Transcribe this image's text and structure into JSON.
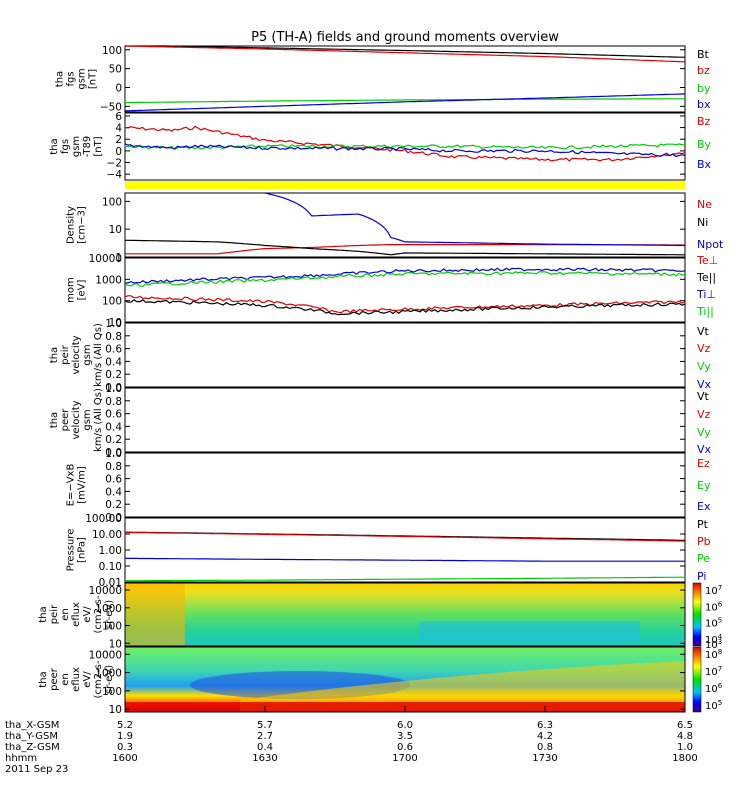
{
  "title": "P5 (TH-A) fields and ground moments overview",
  "colors": {
    "black": "#000000",
    "red": "#dd0000",
    "green": "#00cc00",
    "blue": "#0000dd",
    "yellow": "#ffff00"
  },
  "chart_data": [
    {
      "type": "line",
      "panel": "fgs",
      "ylabel": [
        "tha",
        "fgs",
        "gsm",
        "[nT]"
      ],
      "yticks": [
        "100",
        "50",
        "0",
        "−50"
      ],
      "ylim": [
        -65,
        110
      ],
      "x": [
        1600,
        1630,
        1700,
        1730,
        1800
      ],
      "series": [
        {
          "name": "Bt",
          "color": "#000000",
          "values": [
            112,
            105,
            98,
            90,
            80
          ]
        },
        {
          "name": "bz",
          "color": "#dd0000",
          "values": [
            110,
            102,
            92,
            82,
            68
          ]
        },
        {
          "name": "by",
          "color": "#00cc00",
          "values": [
            -40,
            -36,
            -33,
            -31,
            -30
          ]
        },
        {
          "name": "bx",
          "color": "#0000dd",
          "values": [
            -62,
            -50,
            -38,
            -28,
            -17
          ]
        }
      ]
    },
    {
      "type": "line",
      "panel": "fgs-t89",
      "ylabel": [
        "tha",
        "fgs",
        "gsm",
        "-T89",
        "[nT]"
      ],
      "yticks": [
        "6",
        "4",
        "2",
        "0",
        "−2",
        "−4"
      ],
      "ylim": [
        -5,
        6.5
      ],
      "x": [
        1600,
        1610,
        1615,
        1630,
        1700,
        1710,
        1730,
        1745,
        1800
      ],
      "series": [
        {
          "name": "Bz",
          "color": "#dd0000",
          "values": [
            4,
            3.5,
            4,
            1.8,
            0,
            -1,
            -1.5,
            -1.5,
            -0.3
          ]
        },
        {
          "name": "By",
          "color": "#00cc00",
          "values": [
            0.8,
            0.5,
            0.5,
            0.8,
            0.8,
            0.8,
            0.5,
            0.8,
            1
          ]
        },
        {
          "name": "Bx",
          "color": "#0000dd",
          "values": [
            1,
            0.5,
            0.8,
            0.5,
            0.3,
            0,
            0,
            -0.5,
            -0.8
          ]
        }
      ]
    },
    {
      "type": "line",
      "panel": "density",
      "ylabel": [
        "Density",
        "[cm−3]"
      ],
      "yticks": [
        "100",
        "10",
        "1"
      ],
      "ylog": true,
      "ylim": [
        1,
        200
      ],
      "x": [
        1600,
        1620,
        1630,
        1640,
        1650,
        1657,
        1700,
        1730,
        1800
      ],
      "series": [
        {
          "name": "Ne",
          "color": "#dd0000",
          "values": [
            1.3,
            1.3,
            2,
            2.2,
            2.6,
            2.8,
            2.8,
            2.8,
            2.7
          ]
        },
        {
          "name": "Ni",
          "color": "#000000",
          "values": [
            4,
            3.5,
            2.6,
            2.0,
            1.6,
            1.2,
            1.4,
            1.3,
            1.2
          ]
        },
        {
          "name": "Npot",
          "color": "#0000dd",
          "values": [
            null,
            null,
            200,
            30,
            35,
            5,
            3.5,
            2.9,
            2.6
          ]
        }
      ]
    },
    {
      "type": "line",
      "panel": "temperature",
      "ylabel": [
        "mom",
        "[eV]"
      ],
      "yticks": [
        "10000",
        "1000",
        "100",
        "10"
      ],
      "ylog": true,
      "ylim": [
        10,
        10000
      ],
      "x": [
        1600,
        1630,
        1645,
        1700,
        1730,
        1800
      ],
      "series": [
        {
          "name": "Te⊥",
          "color": "#dd0000",
          "values": [
            150,
            90,
            30,
            40,
            60,
            90
          ]
        },
        {
          "name": "Te||",
          "color": "#000000",
          "values": [
            100,
            60,
            25,
            30,
            50,
            70
          ]
        },
        {
          "name": "Ti⊥",
          "color": "#0000dd",
          "values": [
            700,
            1200,
            1700,
            2500,
            3000,
            2500
          ]
        },
        {
          "name": "Ti||",
          "color": "#00cc00",
          "values": [
            500,
            900,
            1300,
            1800,
            2000,
            1700
          ]
        }
      ]
    },
    {
      "type": "line",
      "panel": "peir-velocity",
      "ylabel": [
        "tha",
        "peir",
        "velocity",
        "gsm",
        "km/s (All Qs)"
      ],
      "yticks": [
        "1.0",
        "0.8",
        "0.6",
        "0.4",
        "0.2",
        "0.0"
      ],
      "ylim": [
        0,
        1
      ],
      "series": [
        {
          "name": "Vt",
          "color": "#000000"
        },
        {
          "name": "Vz",
          "color": "#dd0000"
        },
        {
          "name": "Vy",
          "color": "#00cc00"
        },
        {
          "name": "Vx",
          "color": "#0000dd"
        }
      ]
    },
    {
      "type": "line",
      "panel": "peer-velocity",
      "ylabel": [
        "tha",
        "peer",
        "velocity",
        "gsm",
        "km/s (All Qs)"
      ],
      "yticks": [
        "1.0",
        "0.8",
        "0.6",
        "0.4",
        "0.2",
        "0.0"
      ],
      "ylim": [
        0,
        1
      ],
      "series": [
        {
          "name": "Vt",
          "color": "#000000"
        },
        {
          "name": "Vz",
          "color": "#dd0000"
        },
        {
          "name": "Vy",
          "color": "#00cc00"
        },
        {
          "name": "Vx",
          "color": "#0000dd"
        }
      ]
    },
    {
      "type": "line",
      "panel": "e-field",
      "ylabel": [
        "E=−VxB",
        "[mV/m]"
      ],
      "yticks": [
        "1.0",
        "0.8",
        "0.6",
        "0.4",
        "0.2",
        "0.0"
      ],
      "ylim": [
        0,
        1
      ],
      "series": [
        {
          "name": "Ez",
          "color": "#dd0000"
        },
        {
          "name": "Ey",
          "color": "#00cc00"
        },
        {
          "name": "Ex",
          "color": "#0000dd"
        }
      ]
    },
    {
      "type": "line",
      "panel": "pressure",
      "ylabel": [
        "Pressure",
        "[nPa]"
      ],
      "yticks": [
        "100.00",
        "10.00",
        "1.00",
        "0.10",
        "0.01"
      ],
      "ylog": true,
      "ylim": [
        0.01,
        100
      ],
      "x": [
        1600,
        1630,
        1700,
        1730,
        1800
      ],
      "series": [
        {
          "name": "Pt",
          "color": "#000000",
          "values": [
            13,
            10,
            7.5,
            5.5,
            4
          ]
        },
        {
          "name": "Pb",
          "color": "#dd0000",
          "values": [
            12.5,
            9.5,
            7,
            5,
            3.6
          ]
        },
        {
          "name": "Pe",
          "color": "#00cc00",
          "values": [
            0.012,
            0.013,
            0.015,
            0.017,
            0.02
          ]
        },
        {
          "name": "Pi",
          "color": "#0000dd",
          "values": [
            0.3,
            0.26,
            0.23,
            0.2,
            0.2
          ]
        }
      ]
    },
    {
      "type": "heatmap",
      "panel": "peir-eflux",
      "ylabel": [
        "tha",
        "peir",
        "en",
        "eflux",
        "eV/",
        "(cm2-s-",
        "sr-eV)"
      ],
      "yticks": [
        "10000",
        "1000",
        "100",
        "10"
      ],
      "ylog": true,
      "ylim": [
        7,
        25000
      ],
      "colorbar_ticks": [
        "10",
        "10",
        "10",
        "10"
      ],
      "colorbar_exps": [
        "7",
        "6",
        "5",
        "4"
      ],
      "colorbar_extra": {
        "label": "10",
        "exp": "3"
      }
    },
    {
      "type": "heatmap",
      "panel": "peer-eflux",
      "ylabel": [
        "tha",
        "peer",
        "en",
        "eflux",
        "eV/",
        "(cm2-s-",
        "sr-eV)"
      ],
      "yticks": [
        "10000",
        "1000",
        "100",
        "10"
      ],
      "ylog": true,
      "ylim": [
        7,
        25000
      ],
      "colorbar_ticks": [
        "10",
        "10",
        "10",
        "10"
      ],
      "colorbar_exps": [
        "8",
        "7",
        "6",
        "5"
      ]
    }
  ],
  "xaxis": {
    "rows": [
      {
        "label": "tha_X-GSM",
        "values": [
          "5.2",
          "5.7",
          "6.0",
          "6.3",
          "6.5"
        ]
      },
      {
        "label": "tha_Y-GSM",
        "values": [
          "1.9",
          "2.7",
          "3.5",
          "4.2",
          "4.8"
        ]
      },
      {
        "label": "tha_Z-GSM",
        "values": [
          "0.3",
          "0.4",
          "0.6",
          "0.8",
          "1.0"
        ]
      },
      {
        "label": "hhmm",
        "values": [
          "1600",
          "1630",
          "1700",
          "1730",
          "1800"
        ]
      }
    ],
    "date": "2011 Sep 23"
  }
}
